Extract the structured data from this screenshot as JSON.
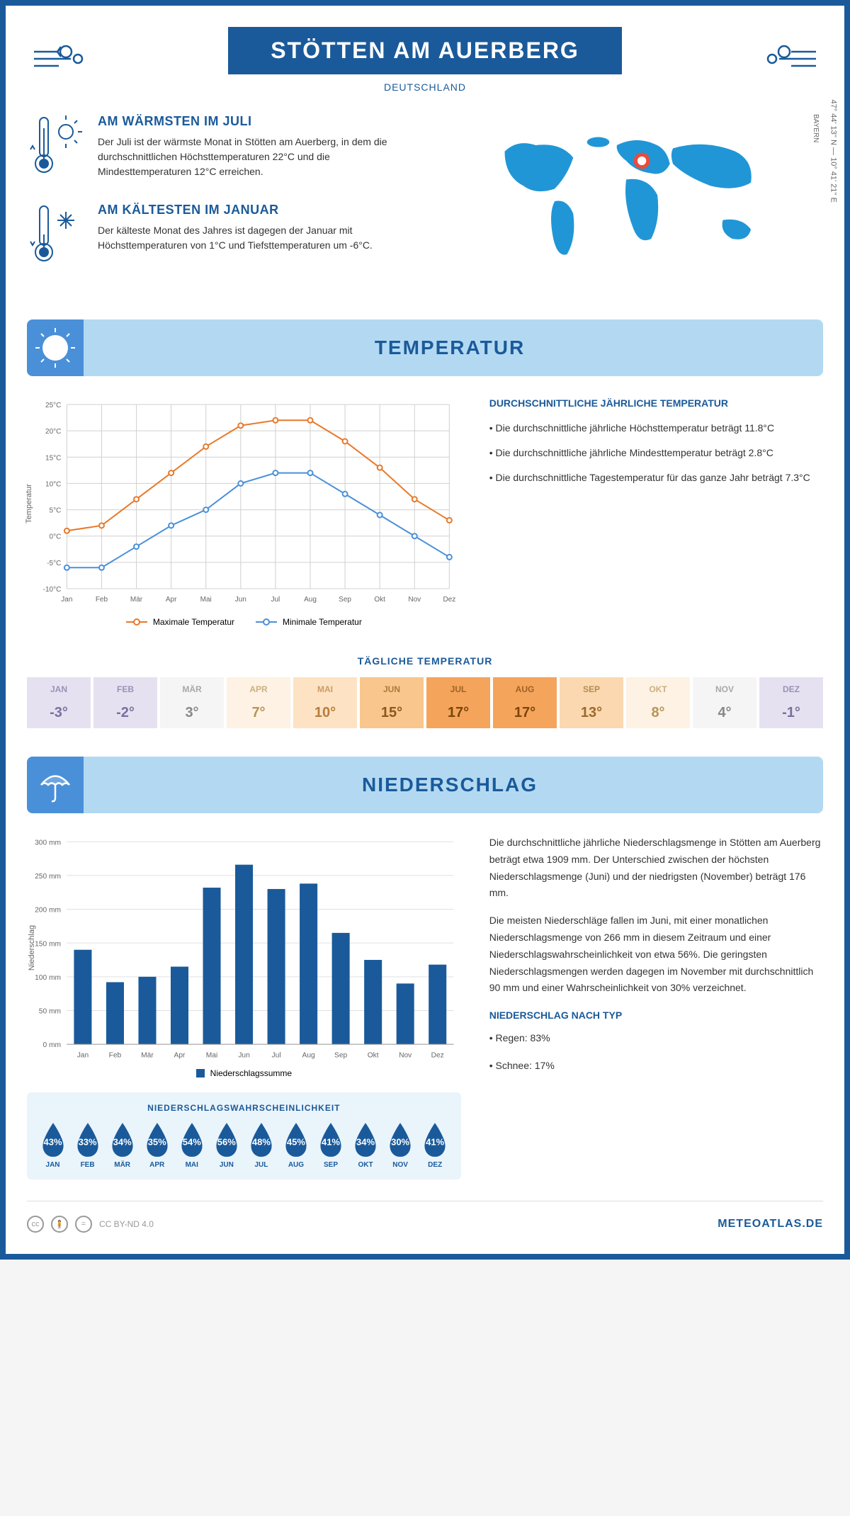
{
  "header": {
    "title": "STÖTTEN AM AUERBERG",
    "subtitle": "DEUTSCHLAND",
    "coords": "47° 44' 13'' N — 10° 41' 21'' E",
    "region": "BAYERN"
  },
  "colors": {
    "primary": "#1a5a9a",
    "lightblue": "#b3d9f2",
    "midblue": "#4a90d9",
    "brightblue": "#2196d6",
    "orange": "#e8792a",
    "red": "#e84c3d",
    "bg_light": "#eaf4fb"
  },
  "facts": {
    "warm": {
      "title": "AM WÄRMSTEN IM JULI",
      "text": "Der Juli ist der wärmste Monat in Stötten am Auerberg, in dem die durchschnittlichen Höchsttemperaturen 22°C und die Mindesttemperaturen 12°C erreichen."
    },
    "cold": {
      "title": "AM KÄLTESTEN IM JANUAR",
      "text": "Der kälteste Monat des Jahres ist dagegen der Januar mit Höchsttemperaturen von 1°C und Tiefsttemperaturen um -6°C."
    }
  },
  "sections": {
    "temperature": "TEMPERATUR",
    "precipitation": "NIEDERSCHLAG"
  },
  "temp_chart": {
    "months": [
      "Jan",
      "Feb",
      "Mär",
      "Apr",
      "Mai",
      "Jun",
      "Jul",
      "Aug",
      "Sep",
      "Okt",
      "Nov",
      "Dez"
    ],
    "max_series": [
      1,
      2,
      7,
      12,
      17,
      21,
      22,
      22,
      18,
      13,
      7,
      3
    ],
    "min_series": [
      -6,
      -6,
      -2,
      2,
      5,
      10,
      12,
      12,
      8,
      4,
      0,
      -4
    ],
    "ylim": [
      -10,
      25
    ],
    "ytick_step": 5,
    "ylabel": "Temperatur",
    "max_color": "#e8792a",
    "min_color": "#4a90d9",
    "grid_color": "#d0d0d0",
    "line_width": 2,
    "legend_max": "Maximale Temperatur",
    "legend_min": "Minimale Temperatur"
  },
  "temp_desc": {
    "title": "DURCHSCHNITTLICHE JÄHRLICHE TEMPERATUR",
    "bullet1": "• Die durchschnittliche jährliche Höchsttemperatur beträgt 11.8°C",
    "bullet2": "• Die durchschnittliche jährliche Mindesttemperatur beträgt 2.8°C",
    "bullet3": "• Die durchschnittliche Tagestemperatur für das ganze Jahr beträgt 7.3°C"
  },
  "daily_temp": {
    "title": "TÄGLICHE TEMPERATUR",
    "months": [
      "JAN",
      "FEB",
      "MÄR",
      "APR",
      "MAI",
      "JUN",
      "JUL",
      "AUG",
      "SEP",
      "OKT",
      "NOV",
      "DEZ"
    ],
    "values": [
      "-3°",
      "-2°",
      "3°",
      "7°",
      "10°",
      "15°",
      "17°",
      "17°",
      "13°",
      "8°",
      "4°",
      "-1°"
    ],
    "bg_colors": [
      "#e6e1f0",
      "#e6e1f0",
      "#f5f5f5",
      "#fdf2e3",
      "#fde3c4",
      "#f9c68e",
      "#f5a45c",
      "#f5a45c",
      "#fbd8b0",
      "#fdf2e3",
      "#f5f5f5",
      "#e6e1f0"
    ],
    "text_colors": [
      "#7a6fa0",
      "#7a6fa0",
      "#888",
      "#b8935a",
      "#b87d3a",
      "#8a5a1a",
      "#7a460a",
      "#7a460a",
      "#9a6a2a",
      "#b8935a",
      "#888",
      "#7a6fa0"
    ]
  },
  "precip_chart": {
    "months": [
      "Jan",
      "Feb",
      "Mär",
      "Apr",
      "Mai",
      "Jun",
      "Jul",
      "Aug",
      "Sep",
      "Okt",
      "Nov",
      "Dez"
    ],
    "values": [
      140,
      92,
      100,
      115,
      232,
      266,
      230,
      238,
      165,
      125,
      90,
      118
    ],
    "ylim": [
      0,
      300
    ],
    "ytick_step": 50,
    "ylabel": "Niederschlag",
    "bar_color": "#1a5a9a",
    "grid_color": "#e0e0e0",
    "bar_width": 0.55,
    "legend": "Niederschlagssumme"
  },
  "precip_desc": {
    "para1": "Die durchschnittliche jährliche Niederschlagsmenge in Stötten am Auerberg beträgt etwa 1909 mm. Der Unterschied zwischen der höchsten Niederschlagsmenge (Juni) und der niedrigsten (November) beträgt 176 mm.",
    "para2": "Die meisten Niederschläge fallen im Juni, mit einer monatlichen Niederschlagsmenge von 266 mm in diesem Zeitraum und einer Niederschlagswahrscheinlichkeit von etwa 56%. Die geringsten Niederschlagsmengen werden dagegen im November mit durchschnittlich 90 mm und einer Wahrscheinlichkeit von 30% verzeichnet.",
    "type_title": "NIEDERSCHLAG NACH TYP",
    "type1": "• Regen: 83%",
    "type2": "• Schnee: 17%"
  },
  "prob": {
    "title": "NIEDERSCHLAGSWAHRSCHEINLICHKEIT",
    "months": [
      "JAN",
      "FEB",
      "MÄR",
      "APR",
      "MAI",
      "JUN",
      "JUL",
      "AUG",
      "SEP",
      "OKT",
      "NOV",
      "DEZ"
    ],
    "values": [
      "43%",
      "33%",
      "34%",
      "35%",
      "54%",
      "56%",
      "48%",
      "45%",
      "41%",
      "34%",
      "30%",
      "41%"
    ],
    "drop_color": "#1a5a9a"
  },
  "footer": {
    "license": "CC BY-ND 4.0",
    "brand": "METEOATLAS.DE"
  }
}
